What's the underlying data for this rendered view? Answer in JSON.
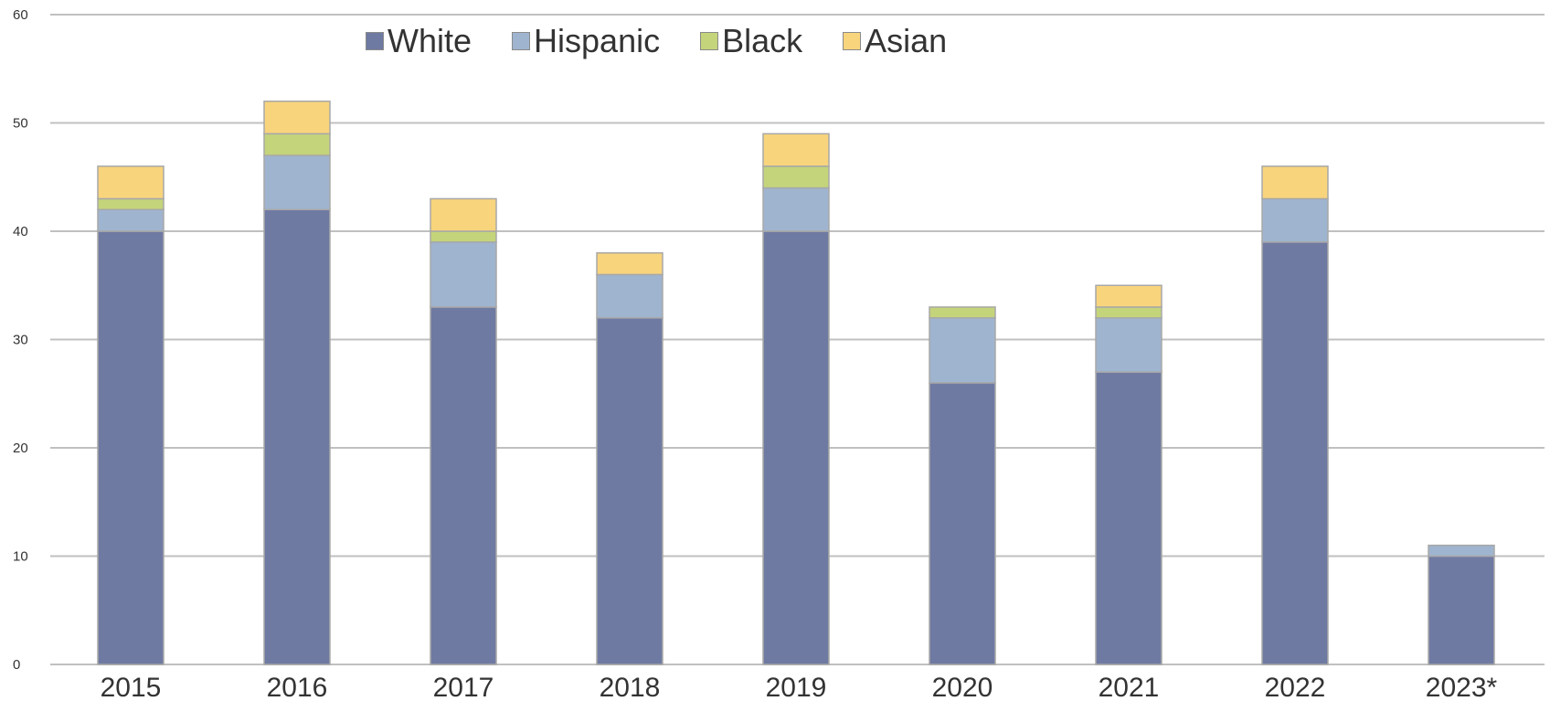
{
  "chart_data": {
    "type": "bar",
    "stacked": true,
    "categories": [
      "2015",
      "2016",
      "2017",
      "2018",
      "2019",
      "2020",
      "2021",
      "2022",
      "2023*"
    ],
    "series": [
      {
        "name": "White",
        "color": "#6f7aa2",
        "values": [
          40,
          42,
          33,
          32,
          40,
          26,
          27,
          39,
          10
        ]
      },
      {
        "name": "Hispanic",
        "color": "#9fb4cf",
        "values": [
          2,
          5,
          6,
          4,
          4,
          6,
          5,
          4,
          1
        ]
      },
      {
        "name": "Black",
        "color": "#c4d47a",
        "values": [
          1,
          2,
          1,
          0,
          2,
          1,
          1,
          0,
          0
        ]
      },
      {
        "name": "Asian",
        "color": "#f8d47c",
        "values": [
          3,
          3,
          3,
          2,
          3,
          0,
          2,
          3,
          0
        ]
      }
    ],
    "ylim": [
      0,
      60
    ],
    "yticks": [
      "0",
      "10",
      "20",
      "30",
      "40",
      "50",
      "60"
    ],
    "grid": true,
    "legend_position": "top-left",
    "title": "",
    "xlabel": "",
    "ylabel": ""
  }
}
